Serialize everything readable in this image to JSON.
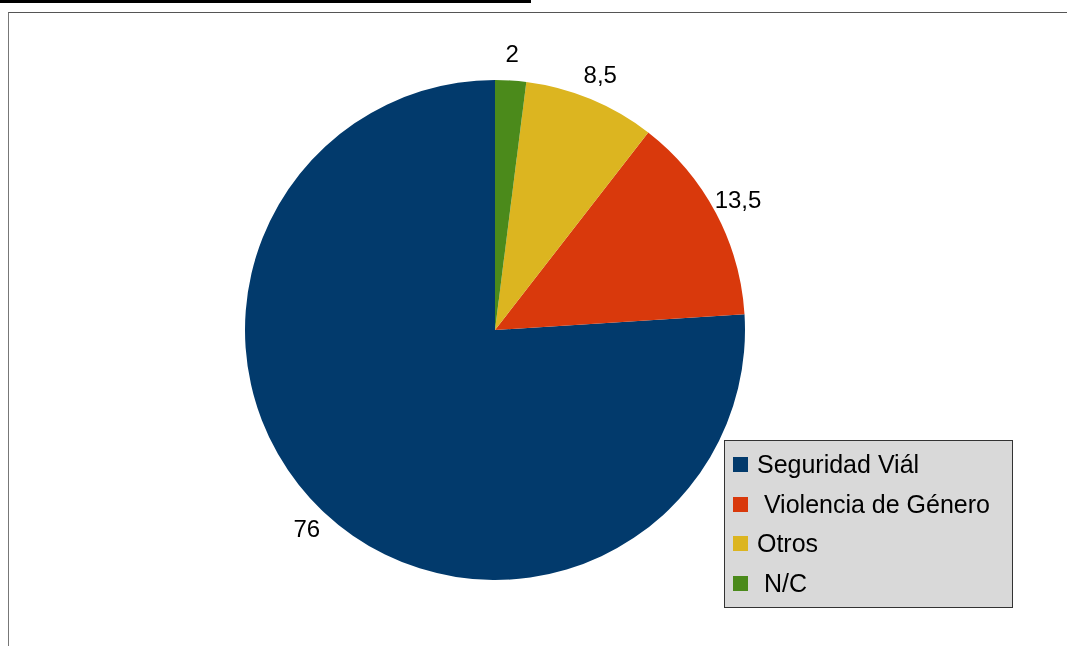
{
  "chart_data": {
    "type": "pie",
    "categories": [
      "Seguridad Viál",
      " Violencia de Género",
      "Otros",
      " N/C"
    ],
    "values": [
      76,
      13.5,
      8.5,
      2
    ],
    "colors": [
      "#023a6c",
      "#d9390c",
      "#dcb520",
      "#4b8a1b"
    ],
    "value_labels": [
      "76",
      "13,5",
      "8,5",
      "2"
    ],
    "legend": "bottom right"
  }
}
